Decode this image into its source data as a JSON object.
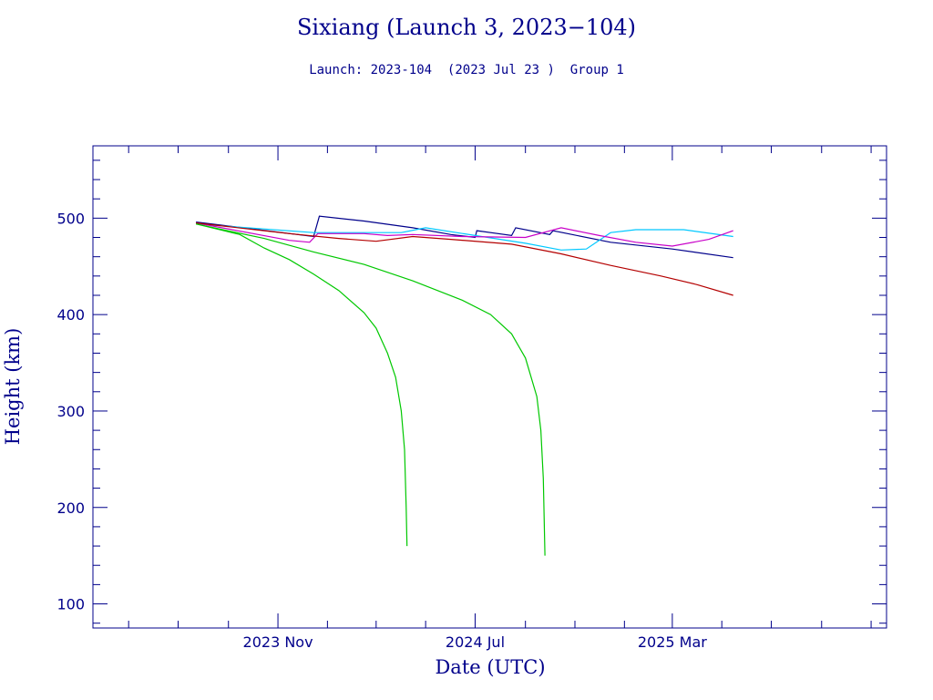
{
  "chart_data": {
    "type": "line",
    "title": "Sixiang (Launch 3, 2023−104)",
    "subtitle": "Launch: 2023-104  (2023 Jul 23 )  Group 1",
    "xlabel": "Date (UTC)",
    "ylabel": "Height (km)",
    "xlim": [
      "2023-03-18",
      "2025-11-20"
    ],
    "ylim": [
      75,
      575
    ],
    "x_ticks": [
      {
        "date": "2023-11-01",
        "label": "2023 Nov"
      },
      {
        "date": "2024-07-01",
        "label": "2024 Jul"
      },
      {
        "date": "2025-03-01",
        "label": "2025 Mar"
      }
    ],
    "y_ticks": [
      100,
      200,
      300,
      400,
      500
    ],
    "series": [
      {
        "color": "#00008b",
        "points": [
          [
            "2023-07-23",
            496
          ],
          [
            "2023-12-15",
            481
          ],
          [
            "2023-12-22",
            502
          ],
          [
            "2024-02-15",
            497
          ],
          [
            "2024-04-15",
            490
          ],
          [
            "2024-06-01",
            483
          ],
          [
            "2024-07-01",
            480
          ],
          [
            "2024-07-03",
            487
          ],
          [
            "2024-08-15",
            482
          ],
          [
            "2024-08-20",
            490
          ],
          [
            "2024-10-01",
            483
          ],
          [
            "2024-10-05",
            487
          ],
          [
            "2024-12-15",
            475
          ],
          [
            "2025-03-01",
            468
          ],
          [
            "2025-05-15",
            459
          ]
        ]
      },
      {
        "color": "#00c8ff",
        "points": [
          [
            "2023-07-23",
            494
          ],
          [
            "2023-12-15",
            485
          ],
          [
            "2024-04-01",
            485
          ],
          [
            "2024-05-01",
            490
          ],
          [
            "2024-07-01",
            482
          ],
          [
            "2024-09-01",
            474
          ],
          [
            "2024-10-15",
            467
          ],
          [
            "2024-11-15",
            468
          ],
          [
            "2024-12-15",
            485
          ],
          [
            "2025-01-15",
            488
          ],
          [
            "2025-03-15",
            488
          ],
          [
            "2025-05-15",
            481
          ]
        ]
      },
      {
        "color": "#c800c8",
        "points": [
          [
            "2023-07-23",
            495
          ],
          [
            "2023-11-15",
            477
          ],
          [
            "2023-12-10",
            475
          ],
          [
            "2023-12-20",
            484
          ],
          [
            "2024-02-15",
            484
          ],
          [
            "2024-03-15",
            482
          ],
          [
            "2024-04-15",
            483
          ],
          [
            "2024-06-15",
            481
          ],
          [
            "2024-09-01",
            480
          ],
          [
            "2024-10-15",
            490
          ],
          [
            "2024-12-01",
            482
          ],
          [
            "2025-01-15",
            475
          ],
          [
            "2025-03-01",
            471
          ],
          [
            "2025-04-15",
            478
          ],
          [
            "2025-05-15",
            487
          ]
        ]
      },
      {
        "color": "#b40000",
        "points": [
          [
            "2023-07-23",
            495
          ],
          [
            "2023-11-15",
            484
          ],
          [
            "2024-01-15",
            479
          ],
          [
            "2024-03-01",
            476
          ],
          [
            "2024-04-15",
            481
          ],
          [
            "2024-06-01",
            478
          ],
          [
            "2024-08-15",
            473
          ],
          [
            "2024-10-15",
            463
          ],
          [
            "2024-12-15",
            451
          ],
          [
            "2025-02-15",
            440
          ],
          [
            "2025-04-01",
            431
          ],
          [
            "2025-05-15",
            420
          ]
        ]
      },
      {
        "color": "#00c800",
        "points": [
          [
            "2023-07-23",
            494
          ],
          [
            "2023-09-15",
            483
          ],
          [
            "2023-10-15",
            469
          ],
          [
            "2023-11-15",
            457
          ],
          [
            "2023-12-15",
            442
          ],
          [
            "2024-01-15",
            425
          ],
          [
            "2024-02-15",
            402
          ],
          [
            "2024-03-01",
            386
          ],
          [
            "2024-03-15",
            360
          ],
          [
            "2024-03-25",
            335
          ],
          [
            "2024-04-01",
            300
          ],
          [
            "2024-04-05",
            260
          ],
          [
            "2024-04-07",
            200
          ],
          [
            "2024-04-08",
            160
          ]
        ]
      },
      {
        "color": "#00c800",
        "points": [
          [
            "2023-07-23",
            494
          ],
          [
            "2023-10-15",
            479
          ],
          [
            "2023-12-15",
            465
          ],
          [
            "2024-02-15",
            452
          ],
          [
            "2024-04-15",
            435
          ],
          [
            "2024-06-15",
            415
          ],
          [
            "2024-07-20",
            400
          ],
          [
            "2024-08-15",
            380
          ],
          [
            "2024-09-01",
            355
          ],
          [
            "2024-09-15",
            315
          ],
          [
            "2024-09-20",
            280
          ],
          [
            "2024-09-23",
            230
          ],
          [
            "2024-09-25",
            150
          ]
        ]
      }
    ]
  }
}
